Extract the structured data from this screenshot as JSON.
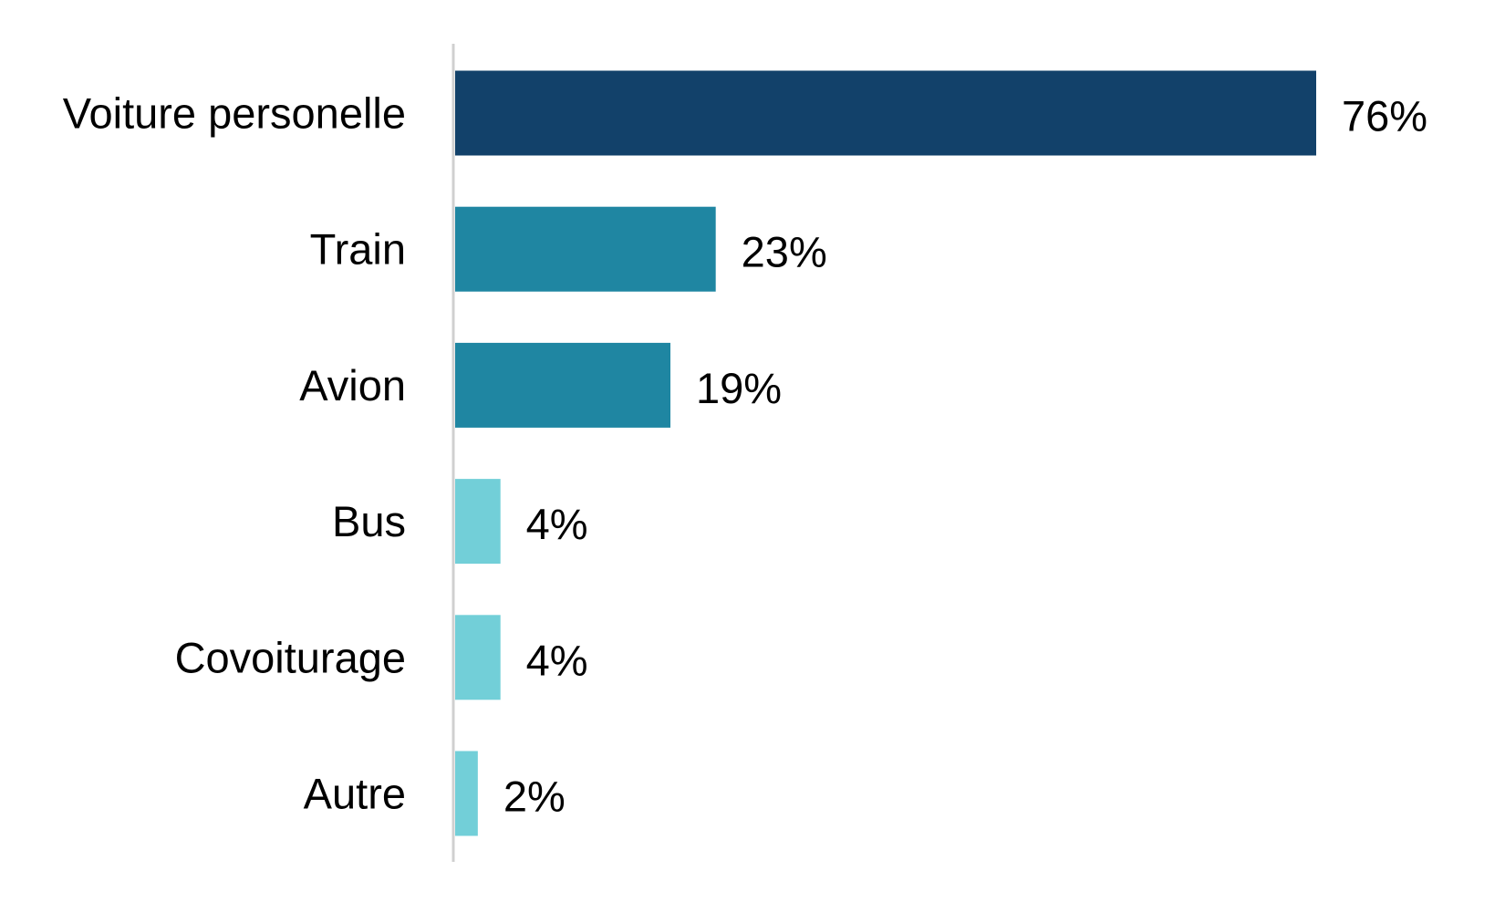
{
  "chart_data": {
    "type": "bar",
    "orientation": "horizontal",
    "title": "",
    "xlabel": "",
    "ylabel": "",
    "categories": [
      "Voiture personelle",
      "Train",
      "Avion",
      "Bus",
      "Covoiturage",
      "Autre"
    ],
    "values": [
      76,
      23,
      19,
      4,
      4,
      2
    ],
    "value_labels": [
      "76%",
      "23%",
      "19%",
      "4%",
      "4%",
      "2%"
    ],
    "colors": [
      "#12416a",
      "#1f86a2",
      "#1f86a2",
      "#72cfd8",
      "#72cfd8",
      "#72cfd8"
    ],
    "xlim": [
      0,
      100
    ],
    "grid": false,
    "legend": "none"
  }
}
